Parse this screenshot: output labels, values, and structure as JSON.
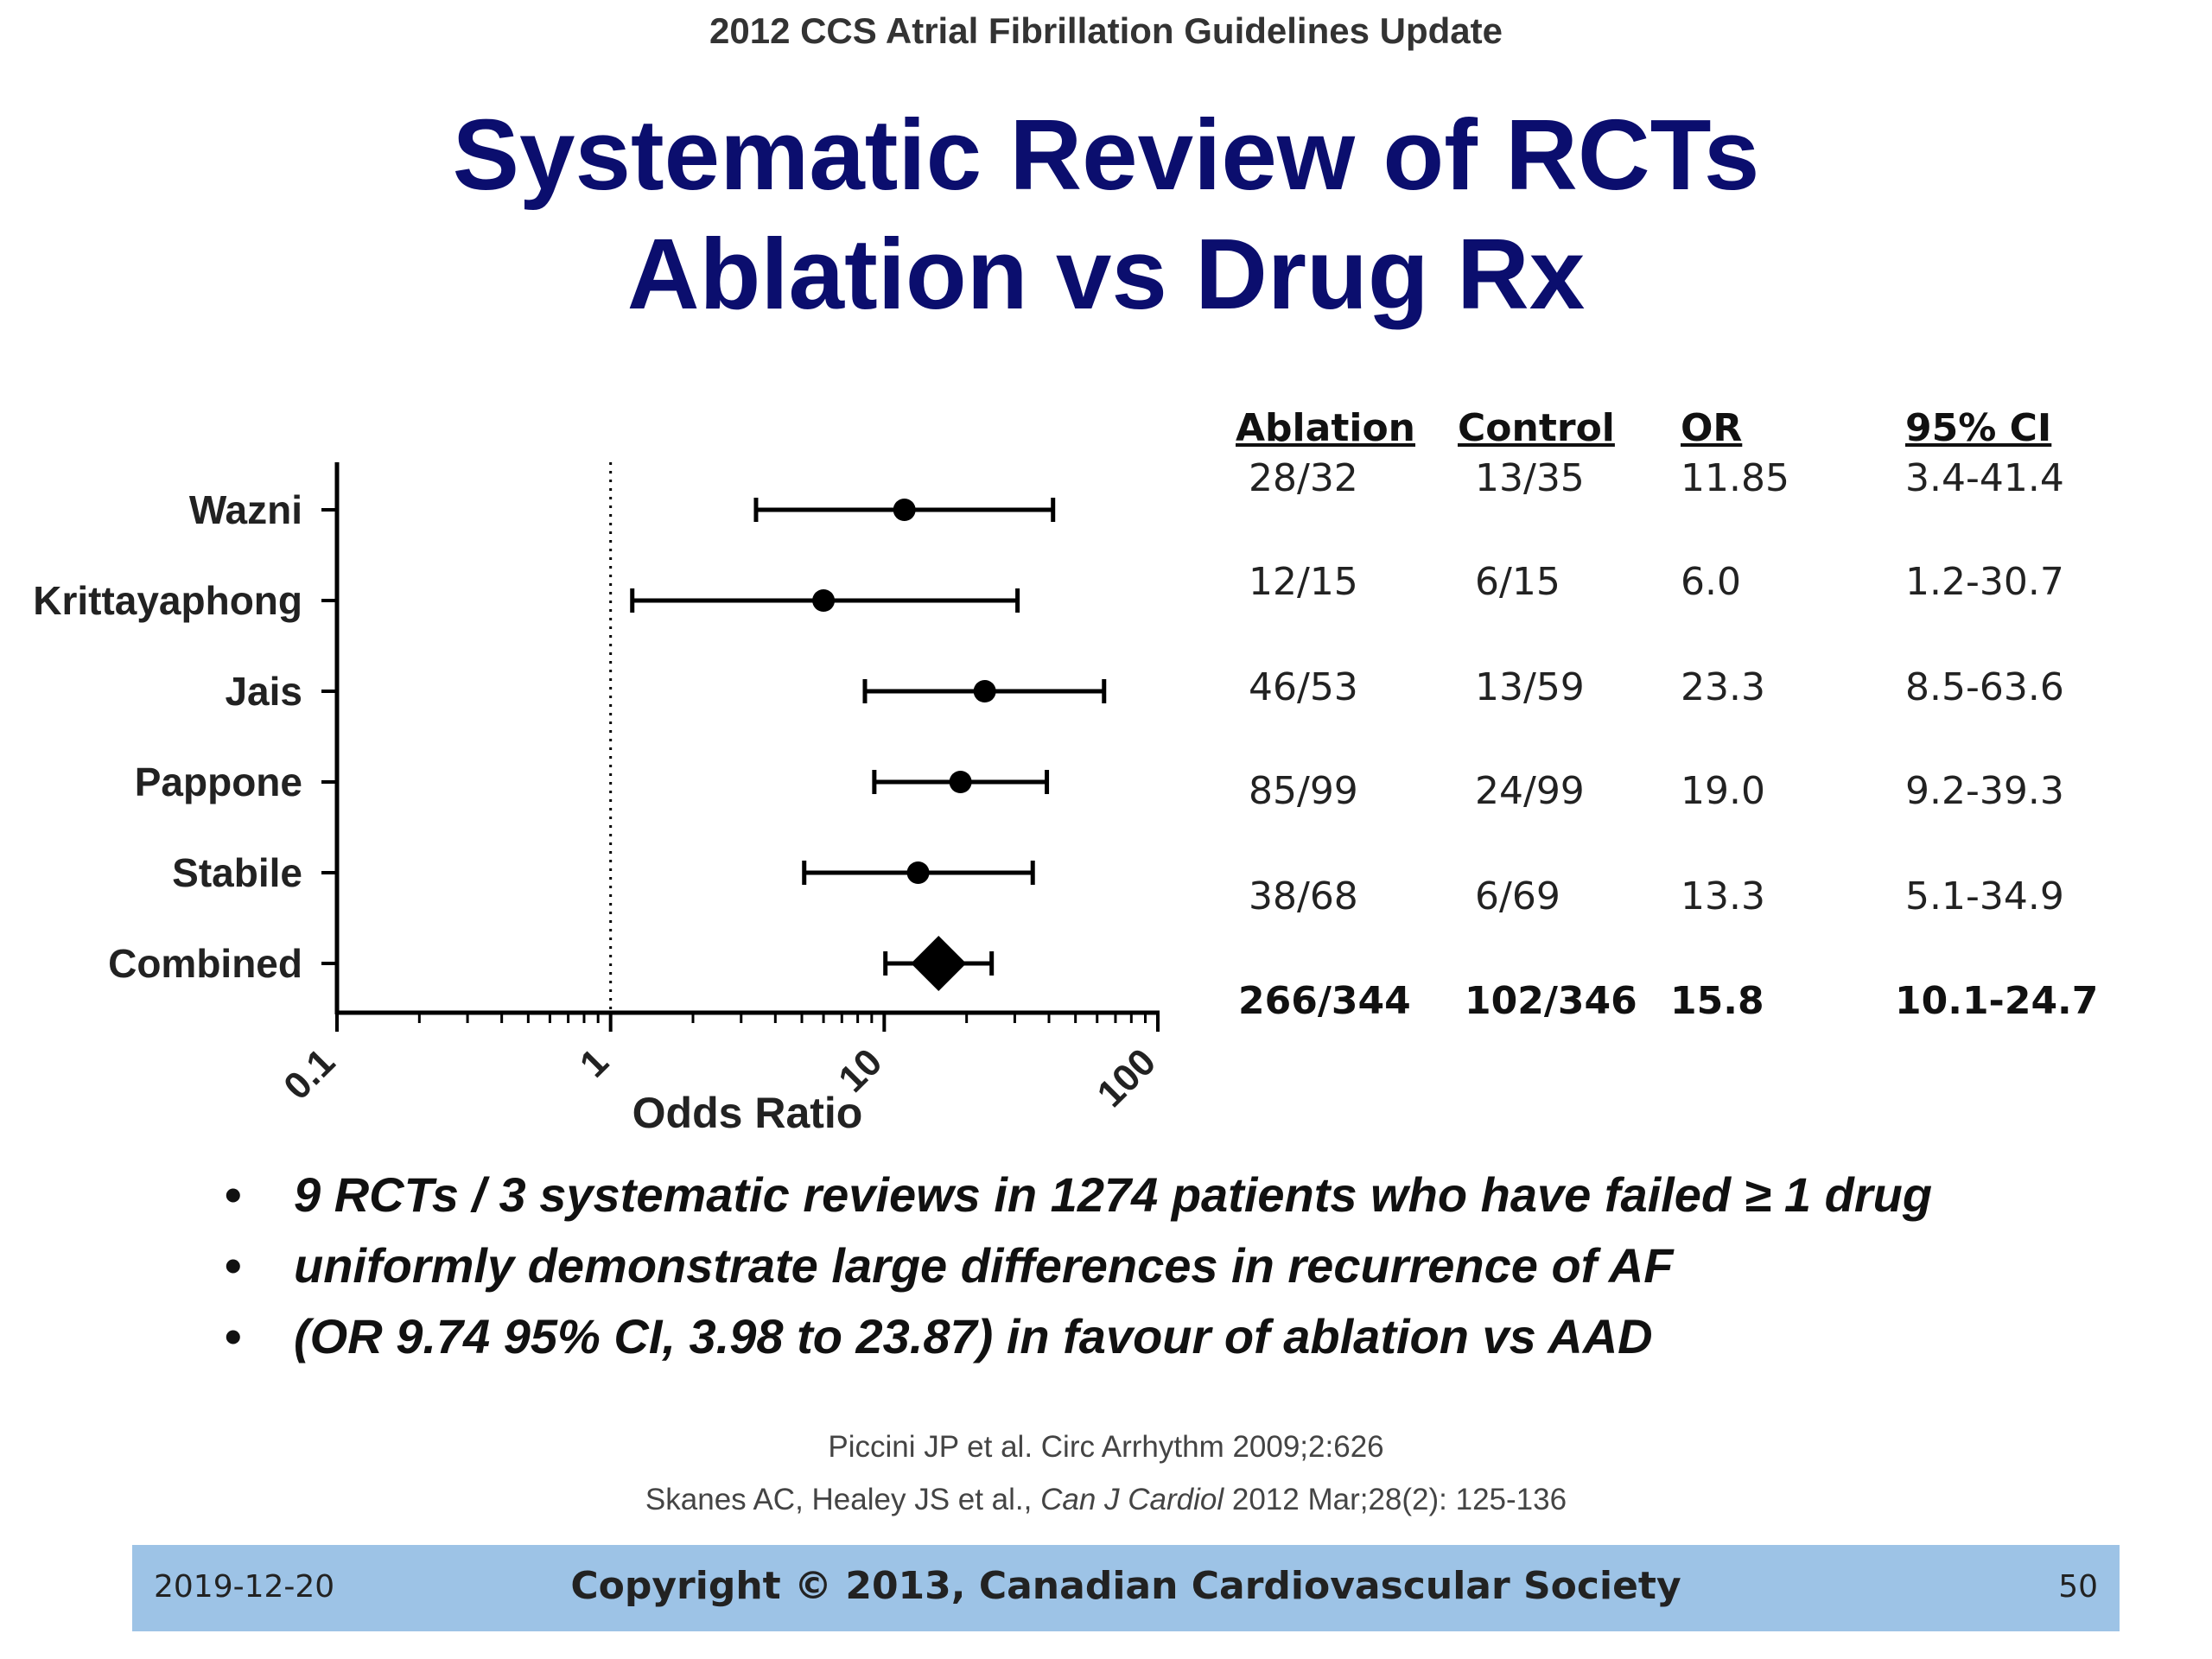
{
  "header": {
    "top_label": "2012 CCS Atrial Fibrillation Guidelines Update",
    "title_line1": "Systematic Review of RCTs",
    "title_line2": "Ablation vs Drug Rx"
  },
  "chart_data": {
    "type": "forest",
    "xlabel": "Odds Ratio",
    "x_scale": "log",
    "xlim": [
      0.1,
      100
    ],
    "ticks": [
      0.1,
      1,
      10,
      100
    ],
    "tick_labels": [
      "0.1",
      "1",
      "10",
      "100"
    ],
    "reference_line": 1,
    "studies": [
      {
        "label": "Wazni",
        "or": 11.85,
        "lo": 3.4,
        "hi": 41.4,
        "marker": "circle"
      },
      {
        "label": "Krittayaphong",
        "or": 6.0,
        "lo": 1.2,
        "hi": 30.7,
        "marker": "circle"
      },
      {
        "label": "Jais",
        "or": 23.3,
        "lo": 8.5,
        "hi": 63.6,
        "marker": "circle"
      },
      {
        "label": "Pappone",
        "or": 19.0,
        "lo": 9.2,
        "hi": 39.3,
        "marker": "circle"
      },
      {
        "label": "Stabile",
        "or": 13.3,
        "lo": 5.1,
        "hi": 34.9,
        "marker": "circle"
      },
      {
        "label": "Combined",
        "or": 15.8,
        "lo": 10.1,
        "hi": 24.7,
        "marker": "diamond"
      }
    ]
  },
  "table": {
    "headers": [
      "Ablation",
      "Control",
      "OR",
      "95% CI"
    ],
    "rows": [
      [
        "28/32",
        "13/35",
        "11.85",
        "3.4-41.4"
      ],
      [
        "12/15",
        "6/15",
        "6.0",
        "1.2-30.7"
      ],
      [
        "46/53",
        "13/59",
        "23.3",
        "8.5-63.6"
      ],
      [
        "85/99",
        "24/99",
        "19.0",
        "9.2-39.3"
      ],
      [
        "38/68",
        "6/69",
        "13.3",
        "5.1-34.9"
      ],
      [
        "266/344",
        "102/346",
        "15.8",
        "10.1-24.7"
      ]
    ]
  },
  "bullets": [
    "9 RCTs / 3 systematic reviews in 1274 patients who have failed ≥ 1 drug",
    "uniformly demonstrate large differences in recurrence of AF",
    "(OR 9.74 95% CI, 3.98 to 23.87) in favour of ablation vs AAD"
  ],
  "bullet_symbol": "•",
  "references": {
    "ref1": "Piccini JP et al. Circ Arrhythm 2009;2:626",
    "ref2_prefix": "Skanes AC, Healey JS et al., ",
    "ref2_journal": "Can J Cardiol",
    "ref2_suffix": " 2012 Mar;28(2): 125-136"
  },
  "footer": {
    "date": "2019-12-20",
    "copyright": "Copyright © 2013, Canadian Cardiovascular Society",
    "page": "50",
    "background": "#9dc3e6"
  },
  "colors": {
    "title": "#0b0e6e",
    "marks": "#000000"
  }
}
